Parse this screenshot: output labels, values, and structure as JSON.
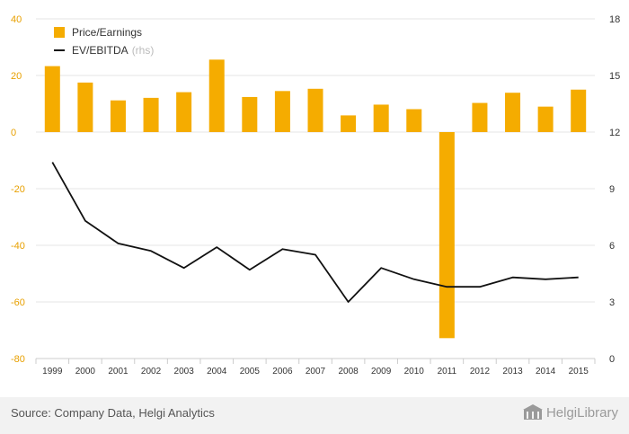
{
  "chart_data": {
    "type": "bar",
    "categories": [
      "1999",
      "2000",
      "2001",
      "2002",
      "2003",
      "2004",
      "2005",
      "2006",
      "2007",
      "2008",
      "2009",
      "2010",
      "2011",
      "2012",
      "2013",
      "2014",
      "2015"
    ],
    "series": [
      {
        "name": "Price/Earnings",
        "type": "bar",
        "axis": "left",
        "values": [
          23.3,
          17.5,
          11.2,
          12.1,
          14.1,
          25.6,
          12.4,
          14.5,
          15.3,
          5.9,
          9.7,
          8.1,
          -72.8,
          10.3,
          13.9,
          9.0,
          15.0
        ]
      },
      {
        "name": "EV/EBITDA",
        "type": "line",
        "axis": "right",
        "values": [
          10.4,
          7.3,
          6.1,
          5.7,
          4.8,
          5.9,
          4.7,
          5.8,
          5.5,
          3.0,
          4.8,
          4.2,
          3.8,
          3.8,
          4.3,
          4.2,
          4.3
        ]
      }
    ],
    "left_axis": {
      "min": -80,
      "max": 40,
      "ticks": [
        "40",
        "20",
        "0",
        "-20",
        "-40",
        "-60",
        "-80"
      ]
    },
    "right_axis": {
      "min": 0,
      "max": 18,
      "ticks": [
        "18",
        "15",
        "12",
        "9",
        "6",
        "3",
        "0"
      ]
    },
    "grid": true,
    "legend_placement": "top-left"
  },
  "legend": {
    "pe_label": "Price/Earnings",
    "ev_label": "EV/EBITDA",
    "rhs_note": "(rhs)"
  },
  "footer": {
    "source": "Source: Company Data, Helgi Analytics",
    "brand": "HelgiLibrary"
  },
  "colors": {
    "bar": "#f5ac00",
    "line": "#111111",
    "left_axis_text": "#e8a000",
    "right_axis_text": "#333333",
    "grid": "#e6e6e6"
  },
  "icons": {
    "brand_logo": "building-icon"
  }
}
